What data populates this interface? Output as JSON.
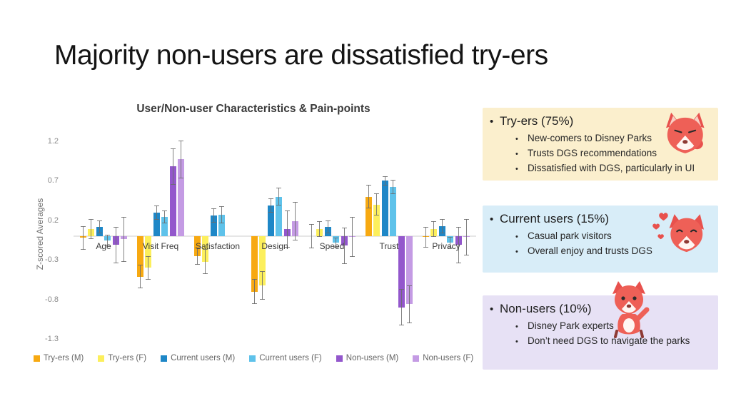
{
  "slide": {
    "title": "Majority non-users are dissatisfied try-ers"
  },
  "chart_data": {
    "type": "bar",
    "title": "User/Non-user Characteristics & Pain-points",
    "xlabel": "",
    "ylabel": "Z-scored Averages",
    "ylim": [
      -1.45,
      1.4
    ],
    "yticks": [
      1.2,
      0.7,
      0.2,
      -0.3,
      -0.8,
      -1.3
    ],
    "grid": "zero-baseline-only",
    "legend_position": "bottom",
    "error_bars": true,
    "categories": [
      "Age",
      "Visit Freq",
      "Satisfaction",
      "Design",
      "Speed",
      "Trust",
      "Privacy"
    ],
    "series": [
      {
        "name": "Try-ers (M)",
        "color": "#F7A911",
        "values": [
          -0.02,
          -0.51,
          -0.25,
          -0.7,
          0.0,
          0.5,
          -0.01
        ],
        "errors": [
          0.15,
          0.15,
          0.11,
          0.16,
          0.15,
          0.15,
          0.13
        ]
      },
      {
        "name": "Try-ers (F)",
        "color": "#FCEF5C",
        "values": [
          0.09,
          -0.4,
          -0.32,
          -0.62,
          0.09,
          0.4,
          0.09
        ],
        "errors": [
          0.13,
          0.15,
          0.16,
          0.18,
          0.1,
          0.14,
          0.1
        ]
      },
      {
        "name": "Current users (M)",
        "color": "#1E87C7",
        "values": [
          0.12,
          0.3,
          0.26,
          0.39,
          0.12,
          0.7,
          0.13
        ],
        "errors": [
          0.08,
          0.09,
          0.09,
          0.09,
          0.08,
          0.06,
          0.09
        ]
      },
      {
        "name": "Current users (F)",
        "color": "#5FC2EA",
        "values": [
          -0.05,
          0.24,
          0.27,
          0.5,
          -0.08,
          0.62,
          -0.08
        ],
        "errors": [
          0.07,
          0.08,
          0.11,
          0.11,
          0.06,
          0.09,
          0.07
        ]
      },
      {
        "name": "Non-users (M)",
        "color": "#9357CC",
        "values": [
          -0.11,
          0.88,
          null,
          0.09,
          -0.12,
          -0.9,
          -0.11
        ],
        "errors": [
          0.23,
          0.23,
          null,
          0.23,
          0.23,
          0.23,
          0.23
        ]
      },
      {
        "name": "Non-users (F)",
        "color": "#C49BE4",
        "values": [
          -0.04,
          0.97,
          null,
          0.19,
          -0.01,
          -0.86,
          -0.01
        ],
        "errors": [
          0.28,
          0.24,
          null,
          0.24,
          0.25,
          0.24,
          0.23
        ]
      }
    ]
  },
  "panels": [
    {
      "heading": "Try-ers (75%)",
      "bg": "#FBEFCD",
      "bullets": [
        "New-comers to Disney Parks",
        "Trusts DGS recommendations",
        "Dissatisfied with DGS, particularly in UI"
      ]
    },
    {
      "heading": "Current users (15%)",
      "bg": "#D8EDF8",
      "bullets": [
        "Casual park visitors",
        "Overall enjoy and trusts DGS"
      ]
    },
    {
      "heading": "Non-users (10%)",
      "bg": "#E7E1F5",
      "bullets": [
        "Disney Park experts",
        "Don’t need DGS to navigate the parks"
      ]
    }
  ],
  "colors": {
    "error_bar": "#6b6b6b",
    "zero_line": "#e6e6e6",
    "mascot_red": "#E8514D",
    "mascot_light": "#EE6057"
  }
}
